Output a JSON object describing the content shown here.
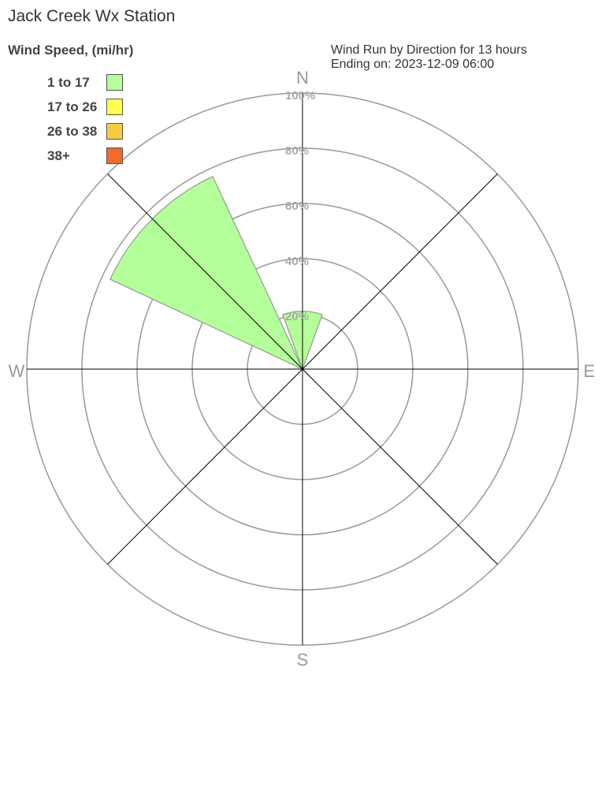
{
  "chart_data": {
    "type": "windrose",
    "title": "Jack Creek Wx Station",
    "subtitle_line1": "Wind Run by Direction for 13 hours",
    "subtitle_line2": "Ending on: 2023-12-09 06:00",
    "legend_title": "Wind Speed, (mi/hr)",
    "legend": [
      {
        "label": "1 to 17",
        "color": "#b3ff99"
      },
      {
        "label": "17 to 26",
        "color": "#ffff4d"
      },
      {
        "label": "26 to 38",
        "color": "#f7cc45"
      },
      {
        "label": "38+",
        "color": "#ee6d2d"
      }
    ],
    "compass": {
      "N": "N",
      "E": "E",
      "S": "S",
      "W": "W"
    },
    "rlim": [
      0,
      100
    ],
    "ring_labels": [
      "20%",
      "40%",
      "60%",
      "80%",
      "100%"
    ],
    "ring_values": [
      20,
      40,
      60,
      80,
      100
    ],
    "directions": [
      "N",
      "NE",
      "E",
      "SE",
      "S",
      "SW",
      "W",
      "NW"
    ],
    "series": [
      {
        "name": "1 to 17",
        "values": [
          21,
          0,
          0,
          0,
          0,
          0,
          0,
          77
        ]
      },
      {
        "name": "17 to 26",
        "values": [
          0,
          0,
          0,
          0,
          0,
          0,
          0,
          0
        ]
      },
      {
        "name": "26 to 38",
        "values": [
          0,
          0,
          0,
          0,
          0,
          0,
          0,
          0
        ]
      },
      {
        "name": "38+",
        "values": [
          0,
          0,
          0,
          0,
          0,
          0,
          0,
          0
        ]
      }
    ]
  }
}
